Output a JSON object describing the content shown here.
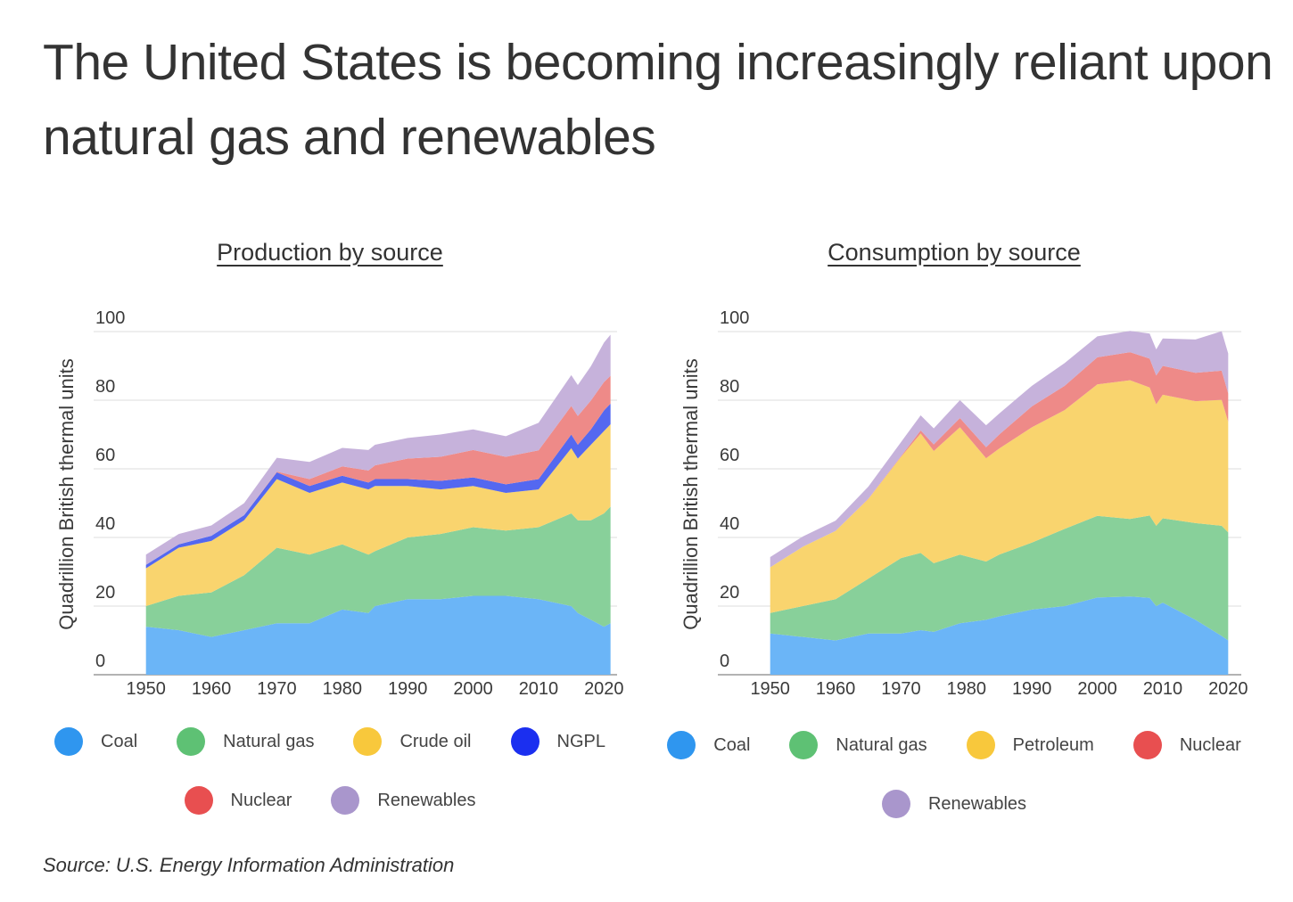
{
  "title": "The United States is becoming increasingly reliant upon natural gas and renewables",
  "source": "Source:  U.S. Energy Information Administration",
  "colors": {
    "coal": "#6bb5f7",
    "natural_gas": "#88d09a",
    "oil": "#f9d46e",
    "ngpl": "#5468f0",
    "nuclear": "#ee8a88",
    "renewables": "#c6b2db",
    "legend_coal": "#2f96ef",
    "legend_natural_gas": "#5ec174",
    "legend_oil": "#f8c83c",
    "legend_ngpl": "#1b2ff0",
    "legend_nuclear": "#e84f50",
    "legend_renewables": "#a996cc"
  },
  "chart_data": [
    {
      "type": "area",
      "stacked": true,
      "title": "Production by source",
      "ylabel": "Quadrillion British thermal units",
      "xlabel": "",
      "ylim": [
        0,
        100
      ],
      "yticks": [
        "0",
        "20",
        "40",
        "60",
        "80",
        "100"
      ],
      "xticks": [
        "1950",
        "1960",
        "1970",
        "1980",
        "1990",
        "2000",
        "2010",
        "2020"
      ],
      "x": [
        1950,
        1955,
        1960,
        1965,
        1970,
        1975,
        1980,
        1984,
        1985,
        1990,
        1995,
        2000,
        2005,
        2010,
        2015,
        2016,
        2018,
        2020,
        2021
      ],
      "series": [
        {
          "name": "Coal",
          "values": [
            14,
            13,
            11,
            13,
            15,
            15,
            19,
            18,
            20,
            22,
            22,
            23,
            23,
            22,
            20,
            18,
            16,
            14,
            15
          ]
        },
        {
          "name": "Natural gas",
          "values": [
            6,
            10,
            13,
            16,
            22,
            20,
            19,
            17,
            16,
            18,
            19,
            20,
            19,
            21,
            27,
            27,
            29,
            33,
            34
          ]
        },
        {
          "name": "Crude oil",
          "values": [
            11,
            14,
            15,
            16,
            20,
            18,
            18,
            19,
            19,
            15,
            13,
            12,
            11,
            11,
            19,
            18,
            22,
            24,
            24
          ]
        },
        {
          "name": "NGPL",
          "values": [
            1,
            1,
            1.5,
            1.5,
            2,
            2,
            2,
            2,
            2,
            2,
            2.5,
            2.5,
            2.5,
            3,
            4,
            4,
            4.5,
            6,
            6
          ]
        },
        {
          "name": "Nuclear",
          "values": [
            0,
            0,
            0,
            0,
            0.2,
            2,
            2.7,
            3.5,
            4,
            6,
            7,
            8,
            8,
            8.4,
            8.3,
            8.4,
            8.4,
            8.3,
            8.1
          ]
        },
        {
          "name": "Renewables",
          "values": [
            3,
            3,
            3,
            3.5,
            4,
            5,
            5.4,
            6,
            6,
            6,
            6.5,
            6,
            6,
            8,
            9,
            9,
            10,
            11.5,
            12
          ]
        }
      ],
      "legend": [
        "Coal",
        "Natural gas",
        "Crude oil",
        "NGPL",
        "Nuclear",
        "Renewables"
      ]
    },
    {
      "type": "area",
      "stacked": true,
      "title": "Consumption by source",
      "ylabel": "Quadrillion British thermal units",
      "xlabel": "",
      "ylim": [
        0,
        100
      ],
      "yticks": [
        "0",
        "20",
        "40",
        "60",
        "80",
        "100"
      ],
      "xticks": [
        "1950",
        "1960",
        "1970",
        "1980",
        "1990",
        "2000",
        "2010",
        "2020"
      ],
      "x": [
        1950,
        1955,
        1960,
        1965,
        1970,
        1973,
        1975,
        1979,
        1983,
        1985,
        1990,
        1995,
        2000,
        2005,
        2008,
        2009,
        2010,
        2015,
        2019,
        2020
      ],
      "series": [
        {
          "name": "Coal",
          "values": [
            12,
            11,
            10,
            12,
            12,
            13,
            12.5,
            15,
            16,
            17,
            19,
            20,
            22.5,
            22.8,
            22.4,
            20,
            21,
            16,
            11.3,
            10
          ]
        },
        {
          "name": "Natural gas",
          "values": [
            6,
            9,
            12,
            16,
            22,
            22.5,
            20,
            20,
            17,
            18,
            19.5,
            22.5,
            23.8,
            22.6,
            24,
            23.4,
            24.6,
            28.2,
            32.1,
            31.5
          ]
        },
        {
          "name": "Petroleum",
          "values": [
            13.3,
            17.3,
            19.9,
            23.2,
            29.5,
            34.8,
            32.7,
            37.1,
            30.1,
            30.9,
            33.6,
            34.6,
            38.3,
            40.4,
            37.3,
            35.4,
            36,
            35.5,
            36.7,
            32.2
          ]
        },
        {
          "name": "Nuclear",
          "values": [
            0,
            0,
            0,
            0.1,
            0.2,
            0.9,
            1.9,
            2.7,
            3.2,
            4.1,
            6.1,
            7.1,
            7.9,
            8.2,
            8.4,
            8.4,
            8.4,
            8.3,
            8.5,
            8.3
          ]
        },
        {
          "name": "Renewables",
          "values": [
            3,
            3,
            3,
            3.5,
            4.1,
            4.4,
            4.7,
            5.2,
            6.4,
            6.1,
            6.0,
            6.6,
            6.1,
            6.2,
            7.3,
            7.6,
            8.0,
            9.7,
            11.5,
            11.6
          ]
        }
      ],
      "legend": [
        "Coal",
        "Natural gas",
        "Petroleum",
        "Nuclear",
        "Renewables"
      ]
    }
  ]
}
